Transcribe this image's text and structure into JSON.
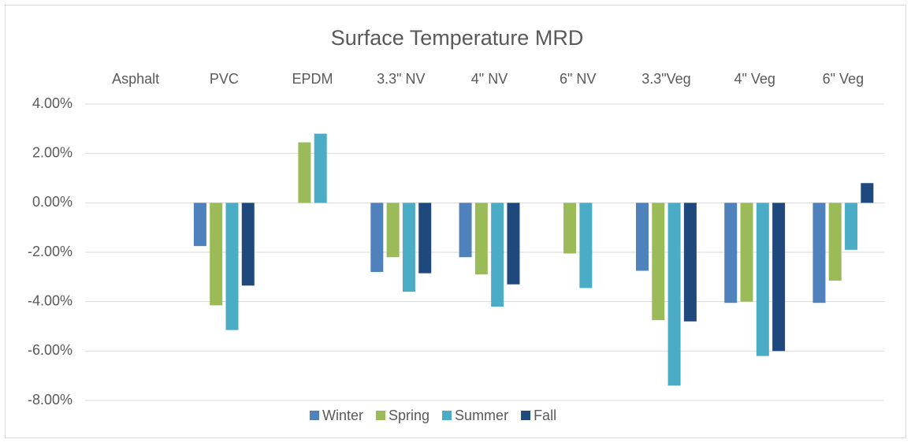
{
  "chart_data": {
    "type": "bar",
    "title": "Surface Temperature MRD",
    "categories": [
      "Asphalt",
      "PVC",
      "EPDM",
      "3.3\" NV",
      "4\" NV",
      "6\" NV",
      "3.3\"Veg",
      "4\" Veg",
      "6\" Veg"
    ],
    "series": [
      {
        "name": "Winter",
        "color": "#4f81bd",
        "values": [
          0,
          -1.75,
          0,
          -2.8,
          -2.2,
          0,
          -2.75,
          -4.05,
          -4.05
        ]
      },
      {
        "name": "Spring",
        "color": "#9bbb59",
        "values": [
          0,
          -4.15,
          2.45,
          -2.2,
          -2.9,
          -2.05,
          -4.75,
          -4.0,
          -3.15
        ]
      },
      {
        "name": "Summer",
        "color": "#4bacc6",
        "values": [
          0,
          -5.15,
          2.8,
          -3.6,
          -4.2,
          -3.45,
          -7.4,
          -6.2,
          -1.9
        ]
      },
      {
        "name": "Fall",
        "color": "#1f497d",
        "values": [
          0,
          -3.35,
          0,
          -2.85,
          -3.3,
          0,
          -4.8,
          -6.0,
          0.8
        ]
      }
    ],
    "ylim": [
      -8,
      4
    ],
    "yticks": [
      {
        "value": -8,
        "label": "-8.00%"
      },
      {
        "value": -6,
        "label": "-6.00%"
      },
      {
        "value": -4,
        "label": "-4.00%"
      },
      {
        "value": -2,
        "label": "-2.00%"
      },
      {
        "value": 0,
        "label": "0.00%"
      },
      {
        "value": 2,
        "label": "2.00%"
      },
      {
        "value": 4,
        "label": "4.00%"
      }
    ],
    "grid": true,
    "legend": "bottom"
  }
}
